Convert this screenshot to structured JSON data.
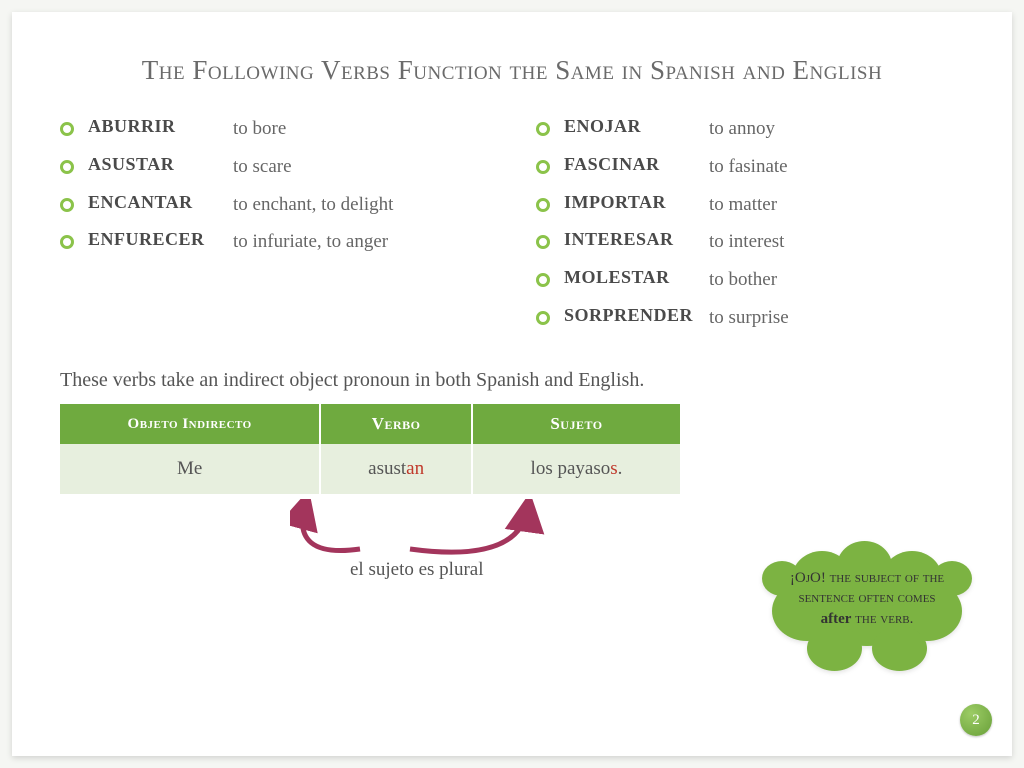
{
  "title": "The Following Verbs Function the Same in Spanish and English",
  "left_verbs": [
    {
      "es": "aburrir",
      "en": "to bore"
    },
    {
      "es": "asustar",
      "en": "to scare"
    },
    {
      "es": "encantar",
      "en": "to enchant, to delight"
    },
    {
      "es": "enfurecer",
      "en": "to infuriate, to anger"
    }
  ],
  "right_verbs": [
    {
      "es": "enojar",
      "en": "to annoy"
    },
    {
      "es": "fascinar",
      "en": "to fasinate"
    },
    {
      "es": "importar",
      "en": "to matter"
    },
    {
      "es": "interesar",
      "en": "to interest"
    },
    {
      "es": "molestar",
      "en": "to bother"
    },
    {
      "es": "sorprender",
      "en": "to surprise"
    }
  ],
  "note": "These verbs take an indirect object pronoun in both Spanish and English.",
  "table": {
    "headers": [
      "Objeto Indirecto",
      "Verbo",
      "Sujeto"
    ],
    "row": {
      "obj": "Me",
      "verb_stem": "asust",
      "verb_suffix": "an",
      "subj_stem": "los payaso",
      "subj_suffix": "s",
      "subj_punct": "."
    }
  },
  "caption": "el sujeto es plural",
  "cloud": {
    "pre": "¡OjO! the subject of the sentence often comes ",
    "emph": "after",
    "post": " the verb."
  },
  "page_number": "2",
  "colors": {
    "accent": "#7cb342",
    "table_header": "#6faa3f",
    "table_cell": "#e7efde",
    "highlight": "#c0392b",
    "arrow": "#a3355c"
  }
}
